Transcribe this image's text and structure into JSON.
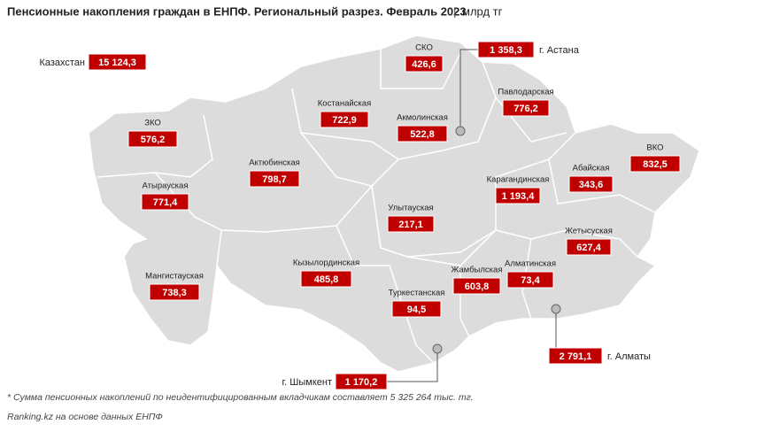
{
  "title": "Пенсионные накопления граждан в ЕНПФ. Региональный разрез. Февраль 2023",
  "unit": "млрд тг",
  "regions": [
    {
      "name": "Казахстан",
      "value": "15 124,3"
    },
    {
      "name": "СКО",
      "value": "426,6"
    },
    {
      "name": "г. Астана",
      "value": "1 358,3"
    },
    {
      "name": "Павлодарская",
      "value": "776,2"
    },
    {
      "name": "Костанайская",
      "value": "722,9"
    },
    {
      "name": "Акмолинская",
      "value": "522,8"
    },
    {
      "name": "ЗКО",
      "value": "576,2"
    },
    {
      "name": "Актюбинская",
      "value": "798,7"
    },
    {
      "name": "Абайская",
      "value": "343,6"
    },
    {
      "name": "ВКО",
      "value": "832,5"
    },
    {
      "name": "Карагандинская",
      "value": "1 193,4"
    },
    {
      "name": "Атырауская",
      "value": "771,4"
    },
    {
      "name": "Улытауская",
      "value": "217,1"
    },
    {
      "name": "Жетысуская",
      "value": "627,4"
    },
    {
      "name": "Мангистауская",
      "value": "738,3"
    },
    {
      "name": "Кызылординская",
      "value": "485,8"
    },
    {
      "name": "Жамбылская",
      "value": "603,8"
    },
    {
      "name": "Алматинская",
      "value": "73,4"
    },
    {
      "name": "Туркестанская",
      "value": "94,5"
    },
    {
      "name": "г. Шымкент",
      "value": "1 170,2"
    },
    {
      "name": "г. Алматы",
      "value": "2 791,1"
    }
  ],
  "footnote": "* Сумма пенсионных накоплений по неидентифицированным вкладчикам составляет 5 325 264 тыс. тг.",
  "source": "Ranking.kz на основе данных ЕНПФ"
}
